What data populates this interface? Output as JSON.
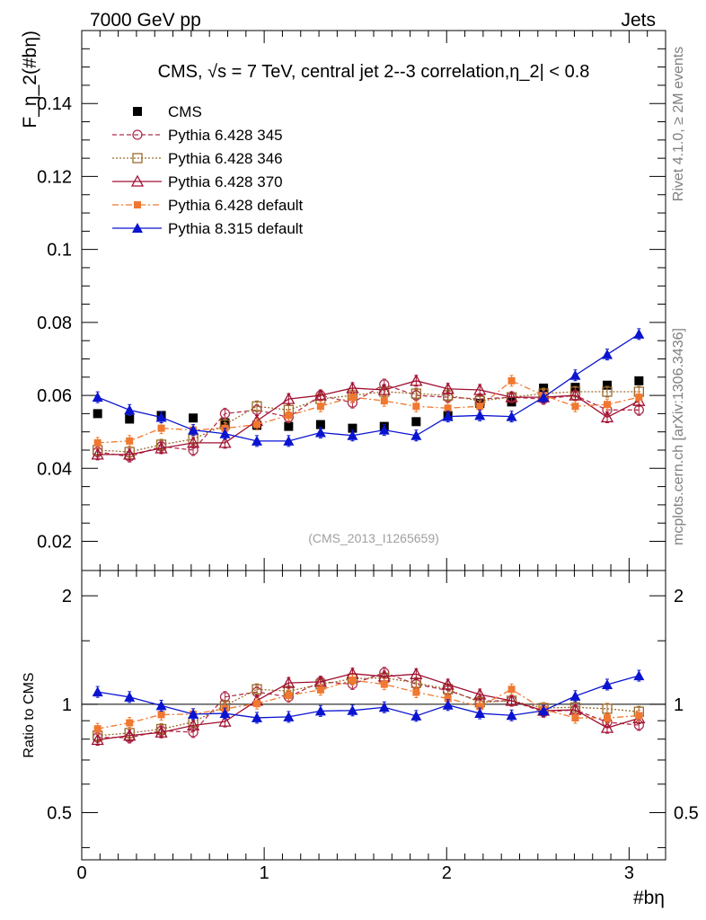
{
  "header": {
    "left": "7000 GeV pp",
    "right": "Jets"
  },
  "side": {
    "rivet": "Rivet 4.1.0, ≥ 2M events",
    "mcplots": "mcplots.cern.ch [arXiv:1306.3436]"
  },
  "chart_data": {
    "type": "scatter",
    "title": "CMS, √s = 7 TeV, central jet 2--3 correlation,η_2| < 0.8",
    "watermark": "(CMS_2013_I1265659)",
    "xlabel": "#bη",
    "ylabel": "F_η_2(#bη)",
    "ratio_ylabel": "Ratio to CMS",
    "xlim": [
      0,
      3.2
    ],
    "ylim": [
      0.012,
      0.16
    ],
    "ratio_ylim": [
      0.37,
      2.35
    ],
    "x_ticks": [
      "0",
      "1",
      "2",
      "3"
    ],
    "y_ticks": [
      "0.02",
      "0.04",
      "0.06",
      "0.08",
      "0.1",
      "0.12",
      "0.14"
    ],
    "ratio_ticks": [
      "0.5",
      "1",
      "2"
    ],
    "x": [
      0.087,
      0.262,
      0.436,
      0.611,
      0.785,
      0.96,
      1.134,
      1.309,
      1.484,
      1.658,
      1.833,
      2.007,
      2.182,
      2.356,
      2.531,
      2.705,
      2.88,
      3.054
    ],
    "series": [
      {
        "name": "CMS",
        "color": "#000000",
        "marker": "filled-square",
        "line": "none",
        "values": [
          0.055,
          0.0535,
          0.0545,
          0.0538,
          0.0525,
          0.0518,
          0.0515,
          0.052,
          0.051,
          0.0515,
          0.0528,
          0.0545,
          0.0578,
          0.0582,
          0.062,
          0.0622,
          0.0628,
          0.064
        ]
      },
      {
        "name": "Pythia 6.428 345",
        "color": "#b03050",
        "marker": "open-circle",
        "line": "dashed",
        "values": [
          0.0445,
          0.0432,
          0.046,
          0.045,
          0.055,
          0.056,
          0.054,
          0.06,
          0.058,
          0.063,
          0.06,
          0.0595,
          0.059,
          0.0595,
          0.059,
          0.06,
          0.056,
          0.056
        ]
      },
      {
        "name": "Pythia 6.428 346",
        "color": "#9c6a2c",
        "marker": "open-square",
        "line": "dotted",
        "values": [
          0.045,
          0.0445,
          0.0465,
          0.048,
          0.052,
          0.057,
          0.056,
          0.059,
          0.06,
          0.061,
          0.0605,
          0.06,
          0.0585,
          0.0595,
          0.0605,
          0.061,
          0.061,
          0.061
        ]
      },
      {
        "name": "Pythia 6.428 370",
        "color": "#a01030",
        "marker": "open-triangle",
        "line": "solid",
        "values": [
          0.0438,
          0.0438,
          0.0455,
          0.047,
          0.047,
          0.053,
          0.059,
          0.06,
          0.062,
          0.0615,
          0.064,
          0.0618,
          0.0615,
          0.0595,
          0.0595,
          0.06,
          0.054,
          0.0585
        ]
      },
      {
        "name": "Pythia 6.428 default",
        "color": "#f07830",
        "marker": "filled-square-small",
        "line": "dashdot",
        "values": [
          0.047,
          0.0475,
          0.051,
          0.0505,
          0.051,
          0.052,
          0.0545,
          0.057,
          0.0595,
          0.0585,
          0.057,
          0.0565,
          0.057,
          0.064,
          0.06,
          0.057,
          0.0575,
          0.0595
        ]
      },
      {
        "name": "Pythia 8.315 default",
        "color": "#0a14d0",
        "marker": "filled-triangle",
        "line": "solid",
        "values": [
          0.0595,
          0.056,
          0.054,
          0.0505,
          0.0495,
          0.0475,
          0.0475,
          0.0498,
          0.049,
          0.0505,
          0.049,
          0.0542,
          0.0545,
          0.0542,
          0.0595,
          0.0655,
          0.0712,
          0.0768
        ]
      }
    ]
  }
}
